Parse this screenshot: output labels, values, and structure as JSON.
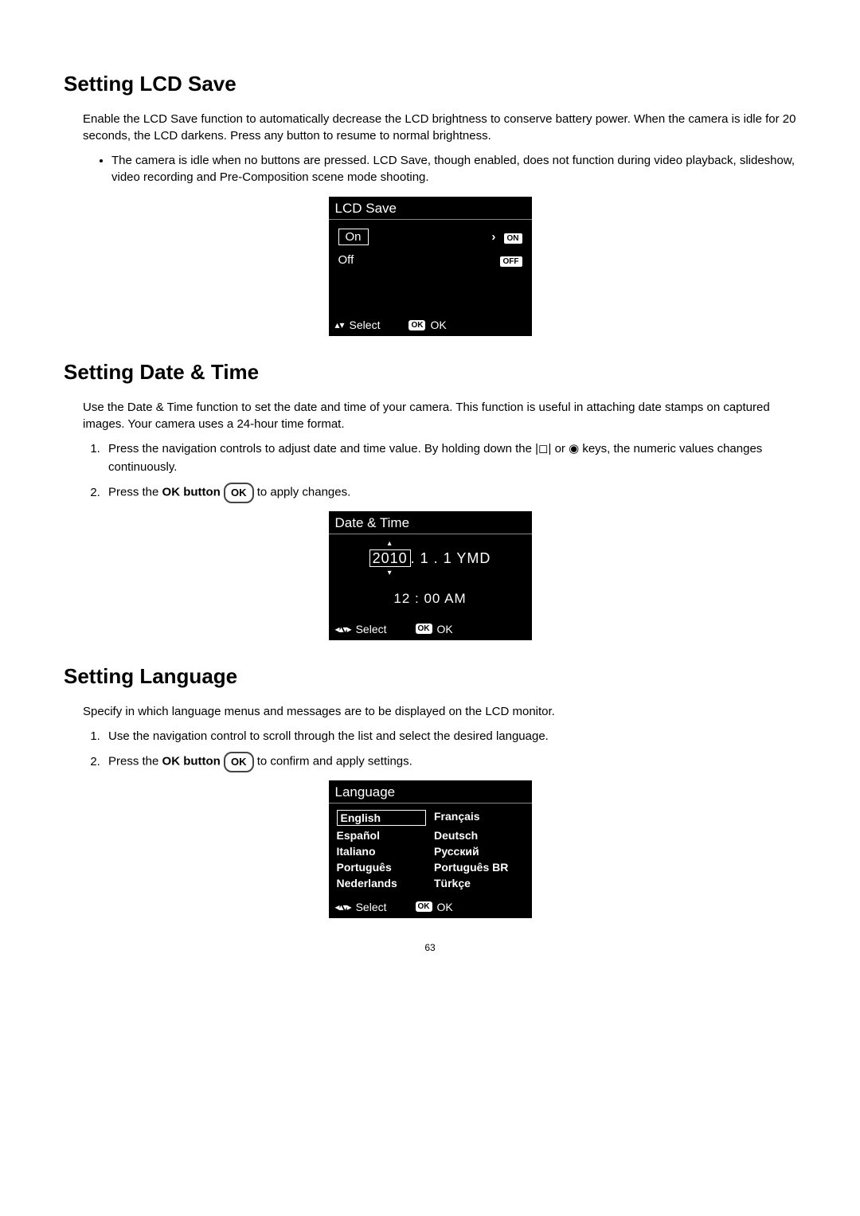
{
  "page_number": "63",
  "sections": {
    "lcd_save": {
      "heading": "Setting LCD Save",
      "intro": "Enable the LCD Save function to automatically decrease the LCD brightness to conserve battery power. When the camera is idle for 20 seconds, the LCD darkens. Press any button to resume to normal brightness.",
      "bullet": "The camera is idle when no buttons are pressed. LCD Save, though enabled, does not function during video playback, slideshow, video recording and Pre-Composition scene mode shooting.",
      "screen": {
        "title": "LCD Save",
        "options": [
          {
            "label": "On",
            "badge": "ON",
            "selected": true,
            "arrow": true
          },
          {
            "label": "Off",
            "badge": "OFF",
            "selected": false,
            "arrow": false
          }
        ],
        "footer_select": "Select",
        "footer_ok": "OK"
      }
    },
    "date_time": {
      "heading": "Setting Date & Time",
      "intro": "Use the Date & Time function to set the date and time of your camera. This function is useful in attaching date stamps on captured images. Your camera uses a 24-hour time format.",
      "steps": [
        "Press the navigation controls to adjust date and time value. By holding down the |◻| or ◉ keys, the numeric values changes continuously.",
        "Press the OK button to apply changes."
      ],
      "step2_prefix": "Press the ",
      "step2_bold": "OK button",
      "step2_suffix": " to apply changes.",
      "screen": {
        "title": "Date & Time",
        "year": "2010",
        "rest_date": ". 1 . 1   YMD",
        "time": "12 : 00  AM",
        "footer_select": "Select",
        "footer_ok": "OK"
      }
    },
    "language": {
      "heading": "Setting Language",
      "intro": "Specify in which language menus and messages are to be displayed on the LCD monitor.",
      "steps": [
        "Use the navigation control to scroll through the list and select the desired language."
      ],
      "step2_prefix": "Press the ",
      "step2_bold": "OK button",
      "step2_suffix": " to confirm and apply settings.",
      "screen": {
        "title": "Language",
        "items": [
          "English",
          "Français",
          "Español",
          "Deutsch",
          "Italiano",
          "Русский",
          "Português",
          "Português BR",
          "Nederlands",
          "Türkçe"
        ],
        "selected_index": 0,
        "footer_select": "Select",
        "footer_ok": "OK"
      }
    }
  },
  "ok_button_label": "OK",
  "colors": {
    "screen_bg": "#000000",
    "screen_fg": "#ffffff",
    "page_bg": "#ffffff",
    "text": "#000000"
  }
}
